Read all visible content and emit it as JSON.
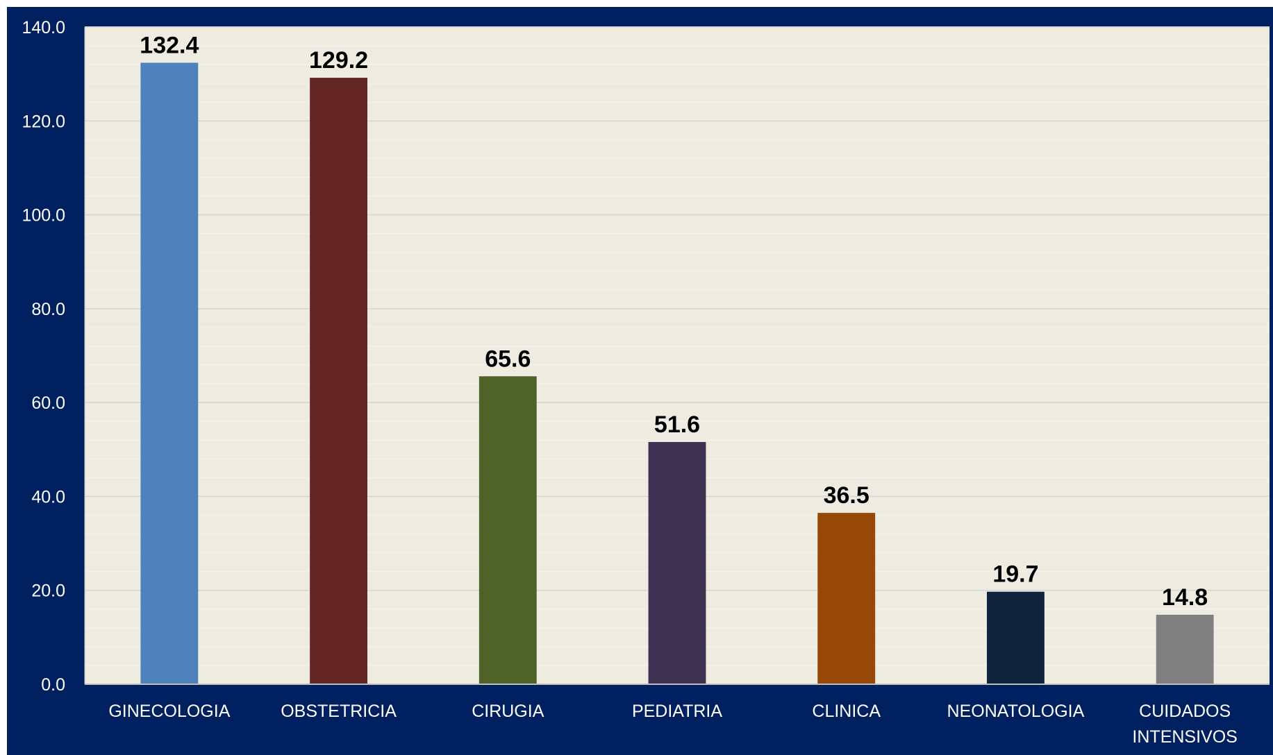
{
  "chart_data": {
    "type": "bar",
    "categories": [
      "GINECOLOGIA",
      "OBSTETRICIA",
      "CIRUGIA",
      "PEDIATRIA",
      "CLINICA",
      "NEONATOLOGIA",
      "CUIDADOS INTENSIVOS"
    ],
    "category_lines": [
      [
        "GINECOLOGIA"
      ],
      [
        "OBSTETRICIA"
      ],
      [
        "CIRUGIA"
      ],
      [
        "PEDIATRIA"
      ],
      [
        "CLINICA"
      ],
      [
        "NEONATOLOGIA"
      ],
      [
        "CUIDADOS",
        "INTENSIVOS"
      ]
    ],
    "values": [
      132.4,
      129.2,
      65.6,
      51.6,
      36.5,
      19.7,
      14.8
    ],
    "value_labels": [
      "132.4",
      "129.2",
      "65.6",
      "51.6",
      "36.5",
      "19.7",
      "14.8"
    ],
    "bar_colors": [
      "#4f81bd",
      "#632523",
      "#4f6228",
      "#3f3151",
      "#974806",
      "#10243e",
      "#808080"
    ],
    "ylim": [
      0,
      140
    ],
    "yticks": [
      "0.0",
      "20.0",
      "40.0",
      "60.0",
      "80.0",
      "100.0",
      "120.0",
      "140.0"
    ],
    "ytick_values": [
      0,
      20,
      40,
      60,
      80,
      100,
      120,
      140
    ],
    "grid": true,
    "legend": "none",
    "title": "",
    "xlabel": "",
    "ylabel": ""
  },
  "colors": {
    "frame_background": "#002060",
    "plot_background": "#eeece1",
    "major_grid": "#d9d9d9",
    "minor_grid": "#f2f2f2",
    "axis_text": "#ffffff",
    "data_label_text": "#000000"
  }
}
